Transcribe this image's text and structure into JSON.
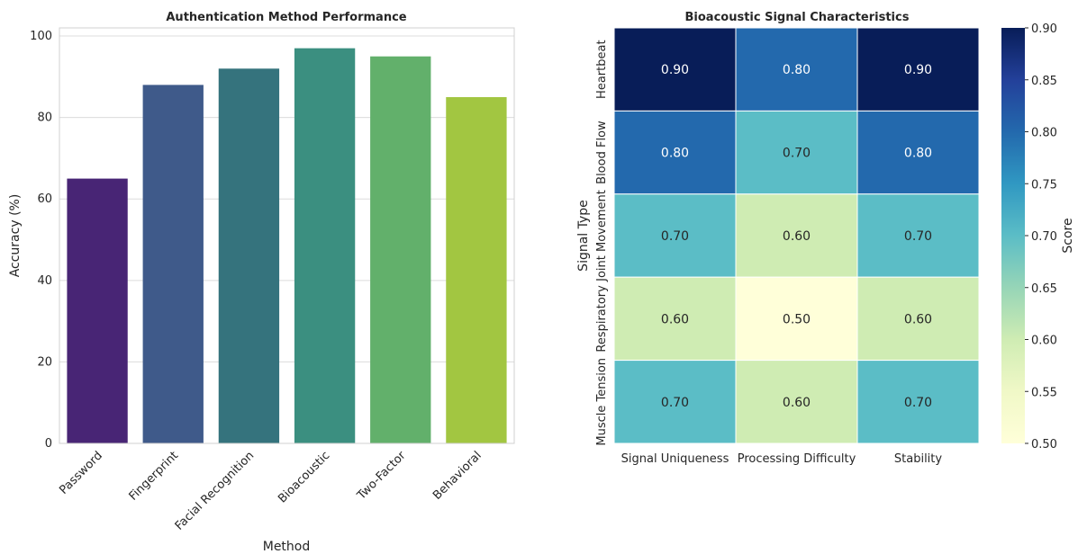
{
  "chart_data": [
    {
      "type": "bar",
      "title": "Authentication Method Performance",
      "xlabel": "Method",
      "ylabel": "Accuracy (%)",
      "categories": [
        "Password",
        "Fingerprint",
        "Facial Recognition",
        "Bioacoustic",
        "Two-Factor",
        "Behavioral"
      ],
      "values": [
        65,
        88,
        92,
        97,
        95,
        85
      ],
      "colors": [
        "#482575",
        "#3f5a8a",
        "#35737d",
        "#3b8f80",
        "#62b06b",
        "#a2c641"
      ],
      "ylim": [
        0,
        102
      ],
      "yticks": [
        0,
        20,
        40,
        60,
        80,
        100
      ],
      "grid": true
    },
    {
      "type": "heatmap",
      "title": "Bioacoustic Signal Characteristics",
      "xlabel": "",
      "ylabel": "Signal Type",
      "columns": [
        "Signal Uniqueness",
        "Processing Difficulty",
        "Stability"
      ],
      "rows": [
        "Heartbeat",
        "Blood Flow",
        "Joint Movement",
        "Respiratory",
        "Muscle Tension"
      ],
      "values": [
        [
          0.9,
          0.8,
          0.9
        ],
        [
          0.8,
          0.7,
          0.8
        ],
        [
          0.7,
          0.6,
          0.7
        ],
        [
          0.6,
          0.5,
          0.6
        ],
        [
          0.7,
          0.6,
          0.7
        ]
      ],
      "value_labels": [
        [
          "0.90",
          "0.80",
          "0.90"
        ],
        [
          "0.80",
          "0.70",
          "0.80"
        ],
        [
          "0.70",
          "0.60",
          "0.70"
        ],
        [
          "0.60",
          "0.50",
          "0.60"
        ],
        [
          "0.70",
          "0.60",
          "0.70"
        ]
      ],
      "colormap": "YlGnBu",
      "colorbar": {
        "label": "Score",
        "range": [
          0.5,
          0.9
        ],
        "ticks": [
          "0.90",
          "0.85",
          "0.80",
          "0.75",
          "0.70",
          "0.65",
          "0.60",
          "0.55",
          "0.50"
        ]
      }
    }
  ]
}
